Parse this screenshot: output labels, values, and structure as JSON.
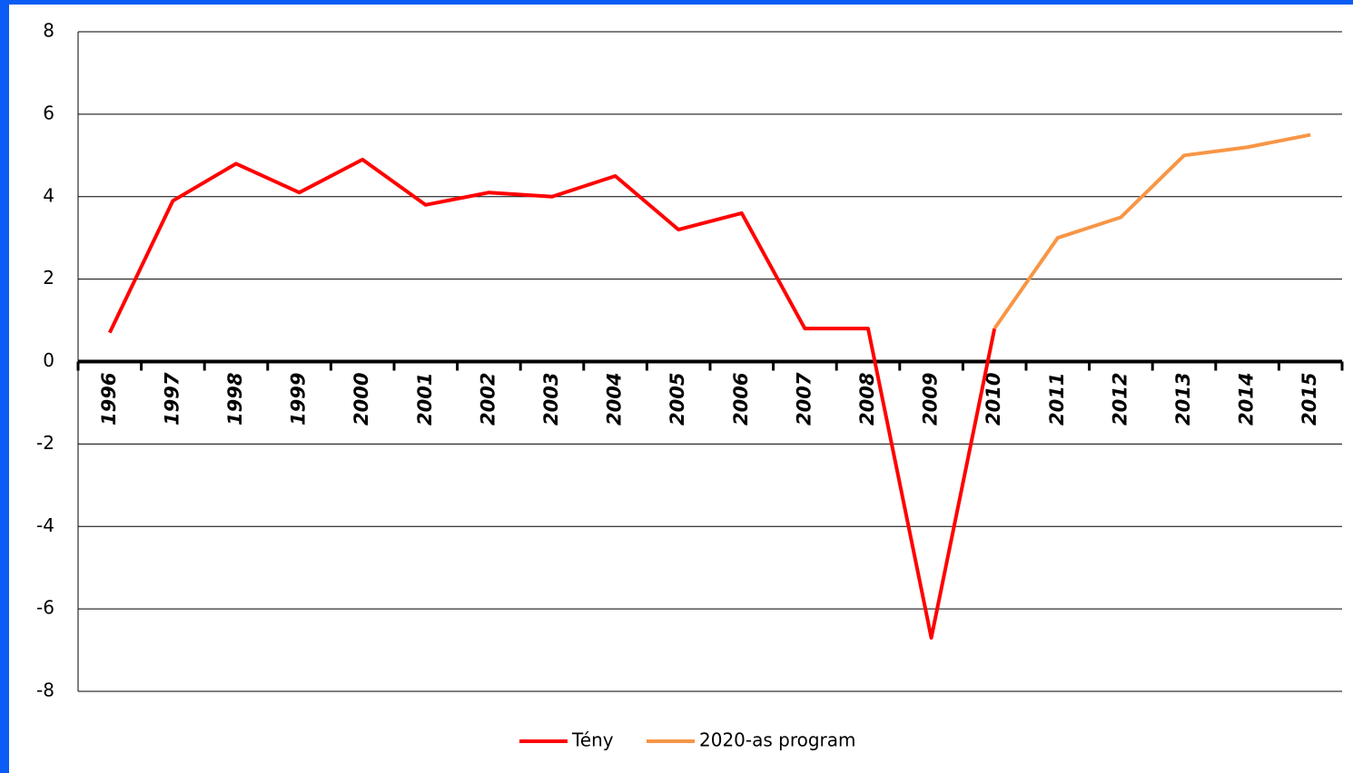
{
  "chart_data": {
    "type": "line",
    "categories": [
      "1996",
      "1997",
      "1998",
      "1999",
      "2000",
      "2001",
      "2002",
      "2003",
      "2004",
      "2005",
      "2006",
      "2007",
      "2008",
      "2009",
      "2010",
      "2011",
      "2012",
      "2013",
      "2014",
      "2015"
    ],
    "series": [
      {
        "name": "Tény",
        "color": "#ff0000",
        "values": [
          0.7,
          3.9,
          4.8,
          4.1,
          4.9,
          3.8,
          4.1,
          4.0,
          4.5,
          3.2,
          3.6,
          0.8,
          0.8,
          -6.7,
          0.8,
          null,
          null,
          null,
          null,
          null
        ]
      },
      {
        "name": "2020-as program",
        "color": "#f79646",
        "values": [
          null,
          null,
          null,
          null,
          null,
          null,
          null,
          null,
          null,
          null,
          null,
          null,
          null,
          null,
          0.8,
          3.0,
          3.5,
          5.0,
          5.2,
          5.5
        ]
      }
    ],
    "ylim": [
      -8,
      8
    ],
    "yticks": [
      -8,
      -6,
      -4,
      -2,
      0,
      2,
      4,
      6,
      8
    ],
    "grid": true,
    "legend": "bottom"
  }
}
